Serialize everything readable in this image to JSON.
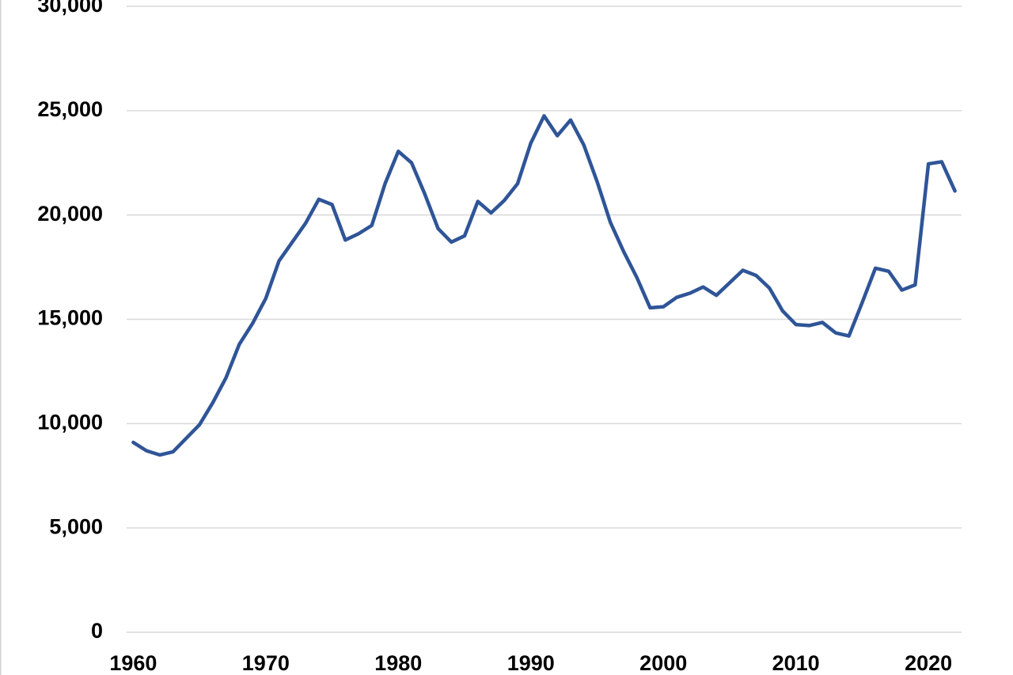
{
  "chart_data": {
    "type": "line",
    "x": [
      1960,
      1961,
      1962,
      1963,
      1964,
      1965,
      1966,
      1967,
      1968,
      1969,
      1970,
      1971,
      1972,
      1973,
      1974,
      1975,
      1976,
      1977,
      1978,
      1979,
      1980,
      1981,
      1982,
      1983,
      1984,
      1985,
      1986,
      1987,
      1988,
      1989,
      1990,
      1991,
      1992,
      1993,
      1994,
      1995,
      1996,
      1997,
      1998,
      1999,
      2000,
      2001,
      2002,
      2003,
      2004,
      2005,
      2006,
      2007,
      2008,
      2009,
      2010,
      2011,
      2012,
      2013,
      2014,
      2015,
      2016,
      2017,
      2018,
      2019,
      2020,
      2021,
      2022
    ],
    "values": [
      9100,
      8700,
      8500,
      8650,
      9300,
      9950,
      11000,
      12200,
      13800,
      14800,
      16000,
      17800,
      18700,
      19600,
      20750,
      20500,
      18800,
      19100,
      19500,
      21500,
      23050,
      22500,
      21000,
      19350,
      18700,
      19000,
      20650,
      20100,
      20700,
      21500,
      23450,
      24750,
      23800,
      24550,
      23350,
      21600,
      19650,
      18250,
      17000,
      15550,
      15600,
      16050,
      16250,
      16550,
      16150,
      16750,
      17350,
      17100,
      16500,
      15400,
      14750,
      14700,
      14850,
      14350,
      14200,
      15800,
      17450,
      17300,
      16400,
      16650,
      22450,
      22550,
      21150
    ],
    "color": "#2f5597",
    "xlim": [
      1959.5,
      2022.5
    ],
    "xticks": [
      1960,
      1970,
      1980,
      1990,
      2000,
      2010,
      2020
    ],
    "ylim": [
      0,
      30000
    ],
    "yticks": [
      0,
      {
        "value": 5000,
        "label": "5,000"
      },
      {
        "value": 10000,
        "label": "10,000"
      },
      {
        "value": 15000,
        "label": "15,000"
      },
      {
        "value": 20000,
        "label": "20,000"
      },
      {
        "value": 25000,
        "label": "25,000"
      },
      {
        "value": 30000,
        "label": "30,000"
      }
    ],
    "grid": true
  }
}
